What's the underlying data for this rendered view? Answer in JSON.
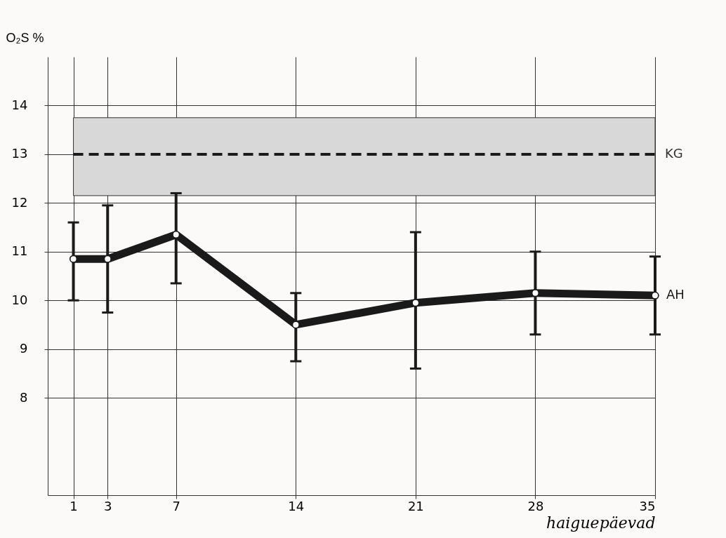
{
  "chart_data": {
    "type": "line",
    "xlabel": "haiguepäevad",
    "ylabel": "O₂S %",
    "x": [
      1,
      3,
      7,
      14,
      21,
      28,
      35
    ],
    "xlim": [
      -0.5,
      35
    ],
    "xticks": [
      1,
      3,
      7,
      14,
      21,
      28,
      35
    ],
    "ylim": [
      6,
      15
    ],
    "yticks": [
      8,
      9,
      10,
      11,
      12,
      13,
      14
    ],
    "grid": true,
    "marker": "circle",
    "series": [
      {
        "name": "AH",
        "color": "#1a1a1a",
        "values": [
          10.85,
          10.85,
          11.35,
          9.5,
          9.95,
          10.15,
          10.1
        ],
        "errors": [
          [
            10.0,
            11.6
          ],
          [
            9.75,
            11.95
          ],
          [
            10.35,
            12.2
          ],
          [
            8.75,
            10.15
          ],
          [
            8.6,
            11.4
          ],
          [
            9.3,
            11.0
          ],
          [
            9.3,
            10.9
          ]
        ]
      }
    ],
    "ref_lines": [
      {
        "axis": "y",
        "value": 13,
        "label": "KG",
        "line_style": "dashed",
        "color": "#1a1a1a"
      }
    ],
    "bands": [
      {
        "axis": "y",
        "from": 12.15,
        "to": 13.75,
        "color": "#d8d8d8"
      }
    ]
  }
}
